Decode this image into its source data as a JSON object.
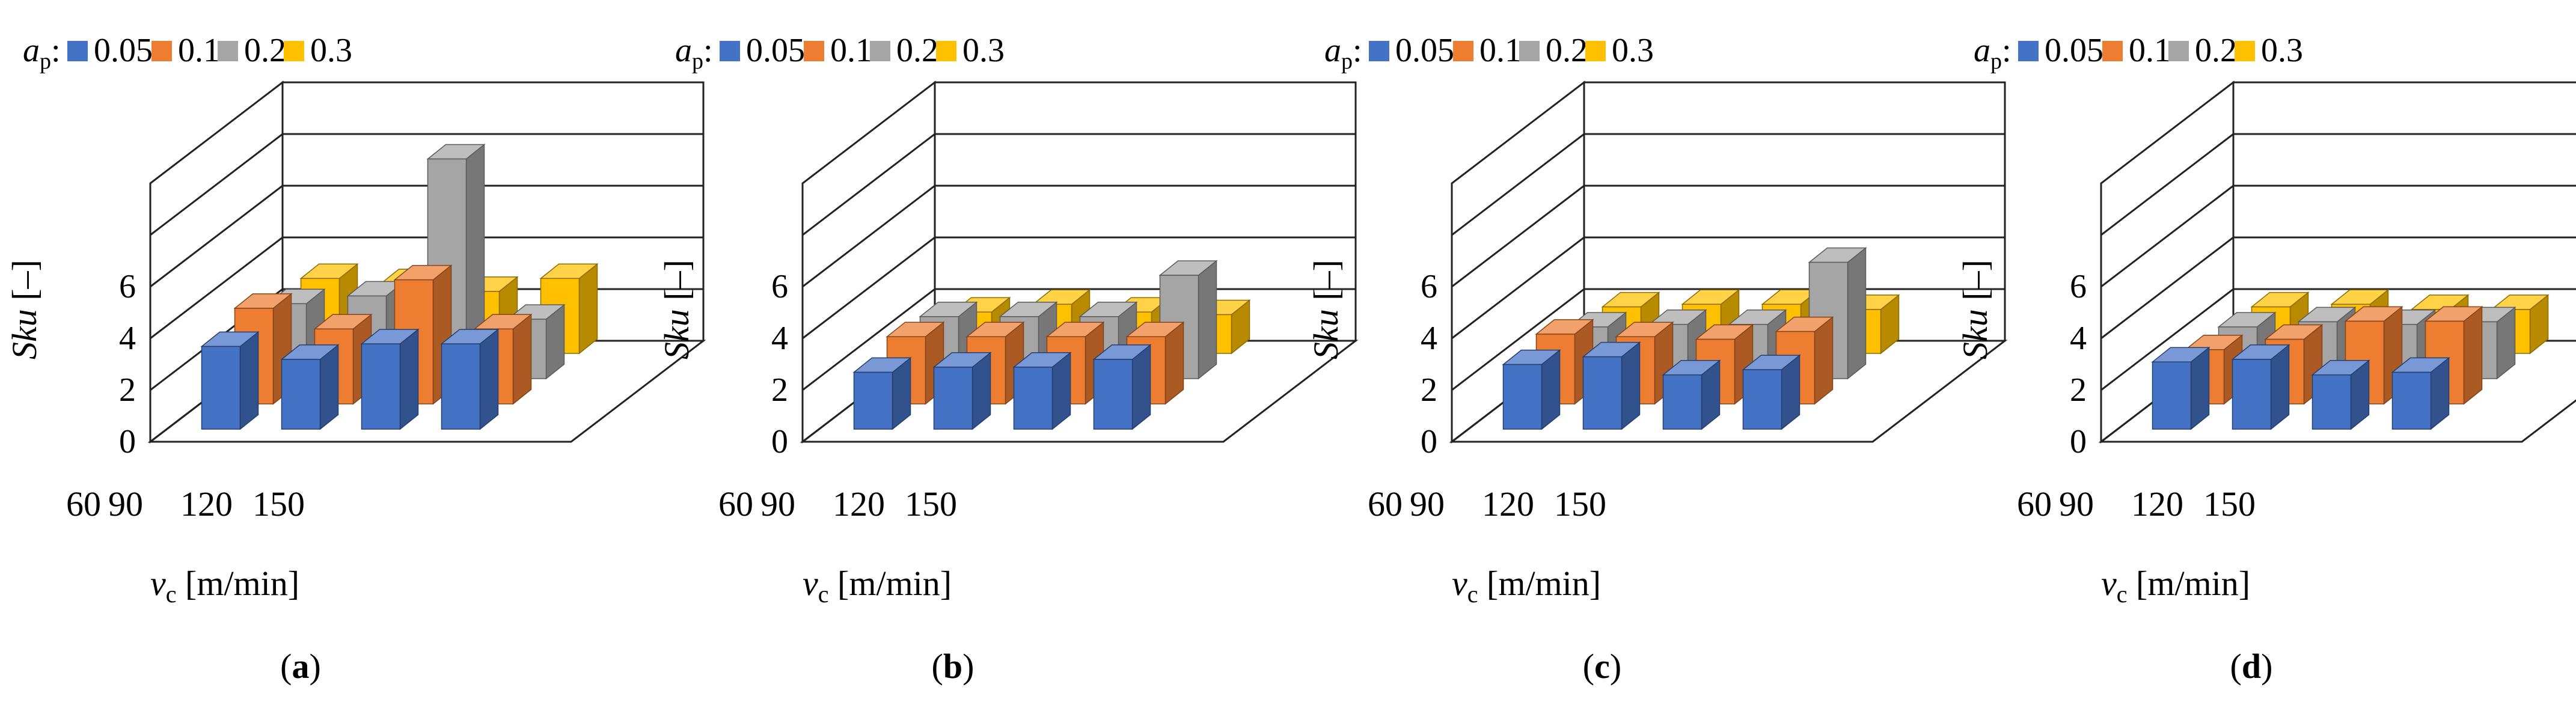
{
  "figure": {
    "legend": {
      "symbol": "a",
      "subscript": "p",
      "colon": ":",
      "entries": [
        "0.05",
        "0.1",
        "0.2",
        "0.3"
      ]
    },
    "series_colors": {
      "0.05": "#4472c4",
      "0.1": "#ed7d31",
      "0.2": "#a5a5a5",
      "0.3": "#ffc000"
    },
    "ylabel": "Sku [–]",
    "xlabel_symbol": "v",
    "xlabel_subscript": "c",
    "xlabel_unit": "[m/min]"
  },
  "chart_data": [
    {
      "type": "bar",
      "panel_label": "(a)",
      "panel_letter": "a",
      "categories": [
        "60",
        "90",
        "120",
        "150"
      ],
      "series": [
        {
          "name": "0.05",
          "values": [
            3.2,
            2.7,
            3.3,
            3.3
          ]
        },
        {
          "name": "0.1",
          "values": [
            3.7,
            2.9,
            4.8,
            2.9
          ]
        },
        {
          "name": "0.2",
          "values": [
            2.9,
            3.2,
            8.5,
            2.3
          ]
        },
        {
          "name": "0.3",
          "values": [
            2.9,
            2.7,
            2.4,
            2.9
          ]
        }
      ],
      "ylabel": "Sku [–]",
      "xlabel": "vc [m/min]",
      "yticks": [
        "0",
        "2",
        "4",
        "6"
      ],
      "ylim": [
        0,
        10
      ]
    },
    {
      "type": "bar",
      "panel_label": "(b)",
      "panel_letter": "b",
      "categories": [
        "60",
        "90",
        "120",
        "150"
      ],
      "series": [
        {
          "name": "0.05",
          "values": [
            2.2,
            2.4,
            2.4,
            2.7
          ]
        },
        {
          "name": "0.1",
          "values": [
            2.6,
            2.6,
            2.6,
            2.6
          ]
        },
        {
          "name": "0.2",
          "values": [
            2.4,
            2.4,
            2.4,
            4.0
          ]
        },
        {
          "name": "0.3",
          "values": [
            1.6,
            1.9,
            1.6,
            1.5
          ]
        }
      ],
      "ylabel": "Sku [–]",
      "xlabel": "vc [m/min]",
      "yticks": [
        "0",
        "2",
        "4",
        "6"
      ],
      "ylim": [
        0,
        10
      ]
    },
    {
      "type": "bar",
      "panel_label": "(c)",
      "panel_letter": "c",
      "categories": [
        "60",
        "90",
        "120",
        "150"
      ],
      "series": [
        {
          "name": "0.05",
          "values": [
            2.5,
            2.8,
            2.1,
            2.3
          ]
        },
        {
          "name": "0.1",
          "values": [
            2.7,
            2.6,
            2.5,
            2.8
          ]
        },
        {
          "name": "0.2",
          "values": [
            2.0,
            2.1,
            2.1,
            4.5
          ]
        },
        {
          "name": "0.3",
          "values": [
            1.8,
            1.9,
            1.9,
            1.7
          ]
        }
      ],
      "ylabel": "Sku [–]",
      "xlabel": "vc [m/min]",
      "yticks": [
        "0",
        "2",
        "4",
        "6"
      ],
      "ylim": [
        0,
        10
      ]
    },
    {
      "type": "bar",
      "panel_label": "(d)",
      "panel_letter": "d",
      "categories": [
        "60",
        "90",
        "120",
        "150"
      ],
      "series": [
        {
          "name": "0.05",
          "values": [
            2.6,
            2.7,
            2.1,
            2.2
          ]
        },
        {
          "name": "0.1",
          "values": [
            2.1,
            2.5,
            3.2,
            3.2
          ]
        },
        {
          "name": "0.2",
          "values": [
            2.0,
            2.2,
            2.1,
            2.2
          ]
        },
        {
          "name": "0.3",
          "values": [
            1.8,
            1.9,
            1.7,
            1.7
          ]
        }
      ],
      "ylabel": "Sku [–]",
      "xlabel": "vc [m/min]",
      "yticks": [
        "0",
        "2",
        "4",
        "6"
      ],
      "ylim": [
        0,
        10
      ]
    }
  ]
}
